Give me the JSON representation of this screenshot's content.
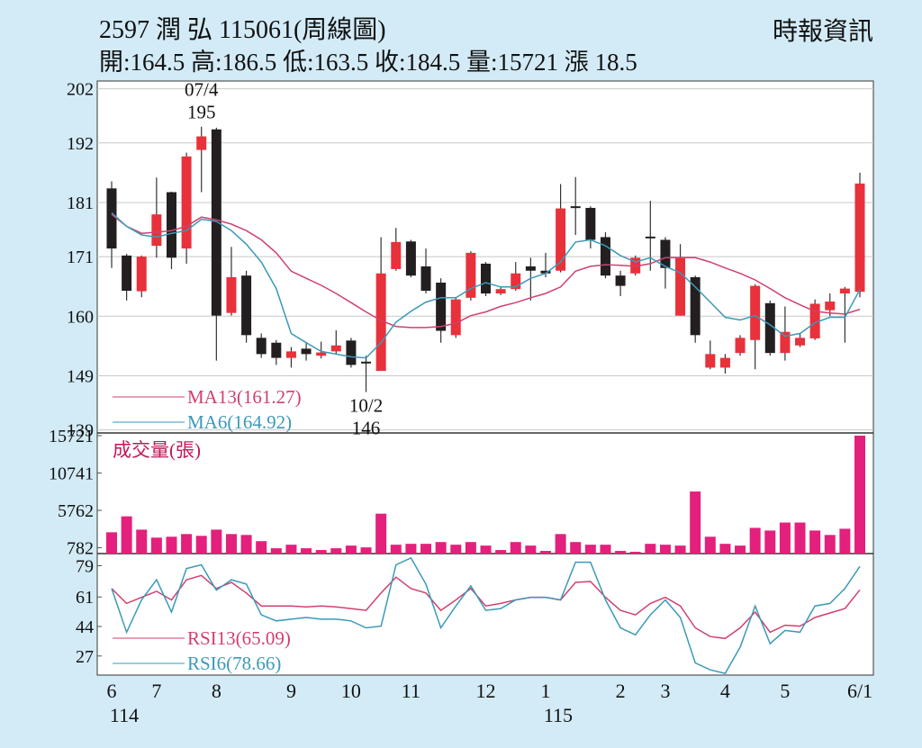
{
  "chart_data": [
    {
      "type": "candlestick",
      "title": "2597  潤 弘 115061(周線圖)",
      "subtitle": "開:164.5 高:186.5 低:163.5 收:184.5 量:15721 漲 18.5",
      "source": "時報資訊",
      "categories": [
        "6",
        null,
        null,
        "7",
        null,
        null,
        null,
        "8",
        null,
        null,
        null,
        null,
        "9",
        null,
        null,
        null,
        "10",
        null,
        null,
        null,
        "11",
        null,
        null,
        null,
        null,
        "12",
        null,
        null,
        null,
        "1",
        null,
        null,
        null,
        null,
        "2",
        null,
        null,
        "3",
        null,
        null,
        null,
        "4",
        null,
        null,
        null,
        "5",
        null,
        null,
        null,
        null,
        "6/1"
      ],
      "years": [
        "114",
        null,
        null,
        null,
        null,
        null,
        null,
        null,
        null,
        null,
        null,
        null,
        null,
        null,
        null,
        null,
        null,
        null,
        null,
        null,
        null,
        null,
        null,
        null,
        null,
        null,
        null,
        null,
        null,
        "115",
        null,
        null,
        null,
        null,
        null,
        null,
        null,
        null,
        null,
        null,
        null,
        null,
        null,
        null,
        null,
        null,
        null,
        null,
        null,
        null,
        null
      ],
      "open": [
        183.6,
        171.2,
        164.6,
        173.0,
        182.9,
        172.5,
        190.7,
        194.5,
        160.6,
        167.5,
        156.0,
        155.1,
        152.3,
        154.0,
        152.7,
        153.5,
        155.5,
        151.6,
        149.9,
        168.7,
        173.8,
        169.2,
        166.2,
        156.5,
        163.4,
        169.7,
        164.2,
        165.0,
        169.2,
        168.4,
        168.4,
        180.3,
        180.0,
        174.6,
        167.5,
        167.9,
        174.7,
        174.1,
        160.1,
        167.2,
        150.5,
        150.5,
        153.2,
        155.6,
        162.4,
        153.2,
        154.6,
        155.9,
        161.1,
        164.2,
        164.5
      ],
      "high": [
        184.9,
        171.5,
        171.2,
        185.6,
        183.0,
        190.2,
        195,
        194.8,
        172.8,
        168.4,
        156.8,
        155.6,
        154.3,
        155.1,
        155.3,
        157.4,
        156.0,
        152.7,
        174.6,
        176.3,
        174.1,
        172.5,
        167.0,
        163.4,
        172.0,
        170.0,
        165.4,
        170.0,
        170.8,
        171.7,
        184.4,
        185.7,
        180.3,
        175.5,
        168.4,
        171.2,
        181.3,
        174.6,
        173.3,
        167.5,
        155.5,
        153.0,
        156.5,
        165.9,
        162.9,
        161.8,
        156.8,
        163.1,
        164.2,
        165.4,
        186.5
      ],
      "low": [
        168.9,
        162.9,
        163.5,
        170.8,
        168.7,
        169.7,
        182.9,
        151.8,
        160.1,
        155.1,
        152.3,
        151.0,
        150.5,
        151.8,
        152.2,
        153.0,
        150.5,
        146,
        149.9,
        168.4,
        167.2,
        164.2,
        155.1,
        156.0,
        162.9,
        163.7,
        163.9,
        164.7,
        162.9,
        167.2,
        168.1,
        175.0,
        172.5,
        167.0,
        163.7,
        167.5,
        168.4,
        165.1,
        160.1,
        155.1,
        150.2,
        149.4,
        152.7,
        150.2,
        152.7,
        151.8,
        154.3,
        155.6,
        160.0,
        155.1,
        163.5
      ],
      "close": [
        172.5,
        164.7,
        171.0,
        178.8,
        170.8,
        189.5,
        193.2,
        160.1,
        167.2,
        156.5,
        153.0,
        152.3,
        153.5,
        153.0,
        153.3,
        154.6,
        151.0,
        151.4,
        167.9,
        173.7,
        167.5,
        164.7,
        157.3,
        163.1,
        171.7,
        164.2,
        165.0,
        167.9,
        168.4,
        167.9,
        179.9,
        180.0,
        174.1,
        167.5,
        165.6,
        170.8,
        174.4,
        168.9,
        170.8,
        156.5,
        153.0,
        152.3,
        156.0,
        165.6,
        153.2,
        157.1,
        156.0,
        162.3,
        162.7,
        165.1,
        184.5
      ],
      "up_color": "#e8313b",
      "down_color": "#231f20",
      "series": [
        {
          "name": "MA13(161.27)",
          "color": "#d0406e",
          "values": [
            178.8,
            176.6,
            175.3,
            175.5,
            175.8,
            176.6,
            178.3,
            177.8,
            177.0,
            175.8,
            174.1,
            171.7,
            168.3,
            167.0,
            165.7,
            164.2,
            162.5,
            160.8,
            159.2,
            158.1,
            157.9,
            157.9,
            158.1,
            158.7,
            160.1,
            160.8,
            161.8,
            162.5,
            163.4,
            164.2,
            165.4,
            168.3,
            169.2,
            169.5,
            169.4,
            169.2,
            169.7,
            170.8,
            170.8,
            170.8,
            170.0,
            168.9,
            167.9,
            166.7,
            165.1,
            163.4,
            162.1,
            160.9,
            160.6,
            160.4,
            161.27
          ]
        },
        {
          "name": "MA6(164.92)",
          "color": "#3a9ab8",
          "values": [
            179.1,
            176.6,
            175.0,
            174.6,
            175.3,
            175.8,
            177.9,
            177.5,
            175.8,
            173.3,
            170.0,
            165.1,
            156.8,
            155.1,
            153.5,
            153.0,
            152.5,
            152.3,
            155.1,
            158.9,
            160.9,
            162.6,
            163.4,
            163.4,
            165.1,
            166.2,
            165.4,
            165.4,
            167.0,
            167.9,
            170.0,
            173.7,
            174.1,
            173.0,
            171.2,
            170.0,
            170.8,
            169.2,
            168.0,
            165.4,
            162.6,
            159.8,
            159.3,
            160.1,
            158.4,
            156.3,
            156.8,
            158.8,
            159.8,
            159.8,
            164.92
          ]
        }
      ],
      "annotations": [
        {
          "text": "07/4",
          "value": 195
        },
        {
          "text": "10/2",
          "value": 146
        }
      ],
      "ylim": [
        138.6,
        203.1
      ],
      "yticks": [
        202,
        192,
        181,
        171,
        160,
        149,
        139
      ],
      "grid": true
    },
    {
      "type": "bar",
      "title": "成交量(張)",
      "color": "#e3207c",
      "values": [
        2837,
        4964,
        3191,
        2128,
        2246,
        2600,
        2364,
        3191,
        2600,
        2482,
        1655,
        709,
        1182,
        709,
        473,
        709,
        1064,
        827,
        5319,
        1182,
        1300,
        1300,
        1537,
        1182,
        1537,
        1064,
        473,
        1537,
        1064,
        355,
        2600,
        1537,
        1182,
        1182,
        355,
        236,
        1300,
        1182,
        1064,
        8274,
        2246,
        1300,
        1064,
        3428,
        3073,
        4137,
        4137,
        3073,
        2482,
        3310,
        15721
      ],
      "ylim": [
        0,
        15960
      ],
      "yticks": [
        782,
        5762,
        10741,
        15721
      ]
    },
    {
      "type": "line",
      "series": [
        {
          "name": "RSI13(65.09)",
          "color": "#d0406e",
          "values": [
            65.9,
            57.3,
            60.8,
            64.3,
            59.3,
            70.9,
            73.4,
            65.9,
            69.4,
            63.3,
            55.8,
            55.8,
            55.8,
            55.3,
            55.8,
            55.3,
            54.3,
            53.3,
            63.3,
            72.4,
            65.9,
            63.3,
            53.3,
            59.3,
            65.9,
            55.8,
            57.3,
            59.3,
            60.8,
            60.8,
            59.3,
            69.4,
            69.9,
            60.8,
            53.3,
            50.7,
            57.3,
            60.8,
            55.8,
            43.2,
            38.2,
            37.1,
            43.2,
            52.3,
            40.7,
            44.7,
            44.2,
            49.2,
            51.8,
            54.3,
            65.09
          ]
        },
        {
          "name": "RSI6(78.66)",
          "color": "#3a9ab8",
          "values": [
            65.9,
            40.7,
            59.3,
            70.9,
            52.3,
            77.4,
            79.5,
            64.9,
            70.9,
            68.4,
            50.7,
            47.2,
            48.2,
            49.2,
            48.2,
            48.2,
            47.2,
            43.2,
            44.2,
            79.5,
            83.5,
            68.4,
            43.2,
            55.8,
            67.4,
            53.3,
            54.3,
            59.3,
            60.8,
            60.8,
            59.3,
            81.0,
            81.0,
            59.3,
            43.2,
            39.2,
            50.7,
            59.3,
            49.2,
            23.0,
            19.0,
            17.0,
            32.1,
            55.8,
            34.1,
            41.7,
            40.7,
            55.8,
            57.3,
            65.9,
            78.66
          ]
        }
      ],
      "ylim": [
        16,
        86
      ],
      "yticks": [
        79,
        61,
        44,
        27
      ]
    }
  ]
}
